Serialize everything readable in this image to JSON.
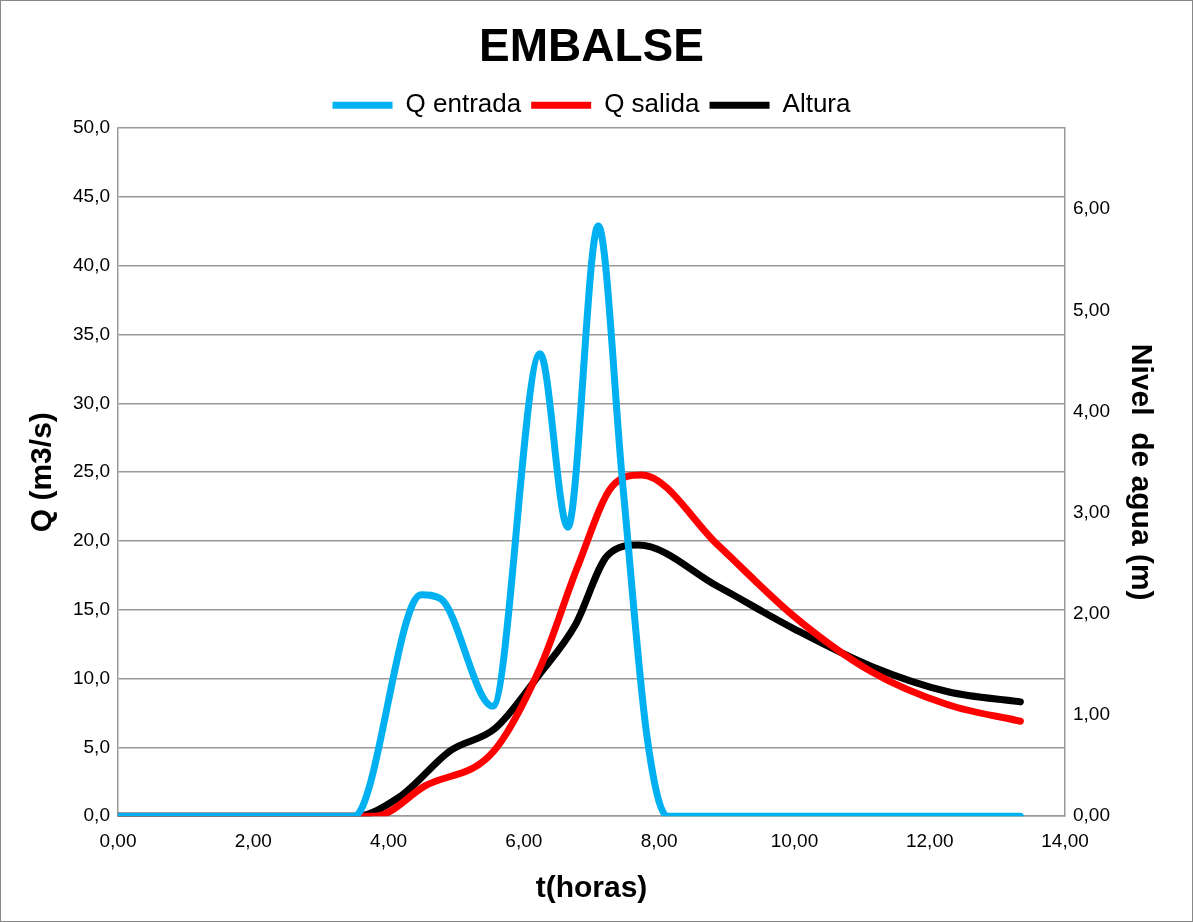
{
  "chart_data": {
    "type": "line",
    "title": "EMBALSE",
    "xlabel": "t(horas)",
    "ylabel": "Q (m3/s)",
    "y2label": "Nivel  de agua (m)",
    "xlim": [
      0,
      14
    ],
    "xticks": [
      {
        "value": 0,
        "label": "0,00"
      },
      {
        "value": 2,
        "label": "2,00"
      },
      {
        "value": 4,
        "label": "4,00"
      },
      {
        "value": 6,
        "label": "6,00"
      },
      {
        "value": 8,
        "label": "8,00"
      },
      {
        "value": 10,
        "label": "10,00"
      },
      {
        "value": 12,
        "label": "12,00"
      },
      {
        "value": 14,
        "label": "14,00"
      }
    ],
    "ylim": [
      0,
      50
    ],
    "yticks": [
      {
        "value": 0,
        "label": "0,0"
      },
      {
        "value": 5,
        "label": "5,0"
      },
      {
        "value": 10,
        "label": "10,0"
      },
      {
        "value": 15,
        "label": "15,0"
      },
      {
        "value": 20,
        "label": "20,0"
      },
      {
        "value": 25,
        "label": "25,0"
      },
      {
        "value": 30,
        "label": "30,0"
      },
      {
        "value": 35,
        "label": "35,0"
      },
      {
        "value": 40,
        "label": "40,0"
      },
      {
        "value": 45,
        "label": "45,0"
      },
      {
        "value": 50,
        "label": "50,0"
      }
    ],
    "y2lim": [
      0,
      6.8
    ],
    "y2ticks": [
      {
        "value": 0,
        "label": "0,00"
      },
      {
        "value": 1,
        "label": "1,00"
      },
      {
        "value": 2,
        "label": "2,00"
      },
      {
        "value": 3,
        "label": "3,00"
      },
      {
        "value": 4,
        "label": "4,00"
      },
      {
        "value": 5,
        "label": "5,00"
      },
      {
        "value": 6,
        "label": "6,00"
      }
    ],
    "grid": "y",
    "legend": "top",
    "marker": "none",
    "line_style": "solid",
    "series": [
      {
        "name": "Q entrada",
        "color": "#00b0f0",
        "x": [
          0,
          3.49,
          4.48,
          4.77,
          5.54,
          6.24,
          6.65,
          7.1,
          7.46,
          7.82,
          8.12,
          13.34
        ],
        "values": [
          0,
          0,
          16.1,
          15.8,
          8.0,
          33.6,
          21.0,
          42.9,
          24.2,
          5.8,
          0,
          0
        ]
      },
      {
        "name": "Q salida",
        "color": "#ff0000",
        "x": [
          0,
          3.8,
          4.54,
          5.55,
          6.24,
          6.8,
          7.31,
          7.74,
          8.87,
          10.0,
          11.14,
          12.27,
          13.34
        ],
        "values": [
          0,
          0,
          2.2,
          4.7,
          10.8,
          18.2,
          24.0,
          24.8,
          19.7,
          14.5,
          10.5,
          8.1,
          6.9
        ]
      },
      {
        "name": "Altura",
        "color": "#000000",
        "axis": "y2",
        "x": [
          0,
          3.5,
          4.16,
          4.92,
          5.58,
          6.24,
          6.76,
          7.24,
          7.69,
          8.87,
          10.0,
          11.14,
          12.27,
          13.34
        ],
        "values": [
          0,
          0,
          0.19,
          0.65,
          0.87,
          1.41,
          1.89,
          2.58,
          2.68,
          2.27,
          1.85,
          1.48,
          1.23,
          1.13
        ]
      }
    ]
  }
}
